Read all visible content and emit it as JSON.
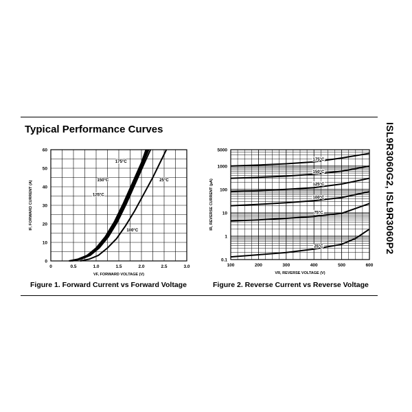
{
  "section_title": "Typical Performance Curves",
  "part_number": "ISL9R3060G2, ISL9R3060P2",
  "chart_data": [
    {
      "type": "line",
      "caption": "Figure 1.  Forward Current vs Forward Voltage",
      "xlabel": "VF, FORWARD VOLTAGE (V)",
      "ylabel": "IF, FORWARD CURRENT (A)",
      "xlim": [
        0,
        3.0
      ],
      "ylim": [
        0,
        60
      ],
      "x_ticks": [
        "0",
        "0.5",
        "1.0",
        "1.5",
        "2.0",
        "2.5",
        "3.0"
      ],
      "y_ticks": [
        "0",
        "10",
        "20",
        "30",
        "40",
        "50",
        "60"
      ],
      "grid": true,
      "series": [
        {
          "name": "175°C",
          "points": [
            [
              0.4,
              0
            ],
            [
              0.6,
              1
            ],
            [
              0.8,
              3
            ],
            [
              1.0,
              7
            ],
            [
              1.2,
              13
            ],
            [
              1.4,
              21
            ],
            [
              1.6,
              31
            ],
            [
              1.8,
              42
            ],
            [
              2.0,
              53
            ],
            [
              2.1,
              60
            ]
          ]
        },
        {
          "name": "150°C",
          "points": [
            [
              0.42,
              0
            ],
            [
              0.62,
              1
            ],
            [
              0.82,
              3
            ],
            [
              1.02,
              7
            ],
            [
              1.22,
              13
            ],
            [
              1.42,
              21
            ],
            [
              1.62,
              31
            ],
            [
              1.82,
              42
            ],
            [
              2.02,
              53
            ],
            [
              2.13,
              60
            ]
          ]
        },
        {
          "name": "125°C",
          "points": [
            [
              0.44,
              0
            ],
            [
              0.64,
              1
            ],
            [
              0.84,
              3
            ],
            [
              1.04,
              7
            ],
            [
              1.24,
              13
            ],
            [
              1.44,
              21
            ],
            [
              1.64,
              31
            ],
            [
              1.84,
              42
            ],
            [
              2.04,
              53
            ],
            [
              2.16,
              60
            ]
          ]
        },
        {
          "name": "100°C",
          "points": [
            [
              0.47,
              0
            ],
            [
              0.67,
              1
            ],
            [
              0.87,
              3
            ],
            [
              1.07,
              7
            ],
            [
              1.27,
              13
            ],
            [
              1.47,
              21
            ],
            [
              1.67,
              31
            ],
            [
              1.87,
              42
            ],
            [
              2.07,
              53
            ],
            [
              2.2,
              60
            ]
          ]
        },
        {
          "name": "25°C",
          "points": [
            [
              0.65,
              0
            ],
            [
              0.85,
              1
            ],
            [
              1.05,
              3
            ],
            [
              1.25,
              7
            ],
            [
              1.45,
              12
            ],
            [
              1.65,
              19
            ],
            [
              1.85,
              27
            ],
            [
              2.05,
              36
            ],
            [
              2.25,
              45
            ],
            [
              2.45,
              55
            ],
            [
              2.55,
              60
            ]
          ]
        }
      ],
      "annotations": [
        {
          "text": "175°C",
          "x": 1.55,
          "y": 53
        },
        {
          "text": "150°C",
          "x": 1.15,
          "y": 43
        },
        {
          "text": "125°C",
          "x": 1.05,
          "y": 35
        },
        {
          "text": "100°C",
          "x": 1.8,
          "y": 16
        },
        {
          "text": "25°C",
          "x": 2.5,
          "y": 43
        }
      ]
    },
    {
      "type": "line",
      "caption": "Figure 2.  Reverse Current vs Reverse Voltage",
      "xlabel": "VR, REVERSE VOLTAGE (V)",
      "ylabel": "IR, REVERSE CURRENT (µA)",
      "xlim": [
        100,
        600
      ],
      "ylim": [
        0.1,
        5000
      ],
      "yscale": "log",
      "x_ticks": [
        "100",
        "200",
        "300",
        "400",
        "500",
        "600"
      ],
      "y_ticks": [
        "0.1",
        "1",
        "10",
        "100",
        "1000",
        "5000"
      ],
      "grid": true,
      "series": [
        {
          "name": "175°C",
          "points": [
            [
              100,
              1000
            ],
            [
              200,
              1100
            ],
            [
              300,
              1250
            ],
            [
              400,
              1500
            ],
            [
              500,
              2200
            ],
            [
              600,
              3500
            ]
          ]
        },
        {
          "name": "150°C",
          "points": [
            [
              100,
              300
            ],
            [
              200,
              330
            ],
            [
              300,
              370
            ],
            [
              400,
              450
            ],
            [
              500,
              600
            ],
            [
              600,
              1000
            ]
          ]
        },
        {
          "name": "125°C",
          "points": [
            [
              100,
              80
            ],
            [
              200,
              88
            ],
            [
              300,
              100
            ],
            [
              400,
              120
            ],
            [
              500,
              170
            ],
            [
              600,
              300
            ]
          ]
        },
        {
          "name": "100°C",
          "points": [
            [
              100,
              20
            ],
            [
              200,
              23
            ],
            [
              300,
              27
            ],
            [
              400,
              33
            ],
            [
              500,
              45
            ],
            [
              600,
              80
            ]
          ]
        },
        {
          "name": "75°C",
          "points": [
            [
              100,
              4.5
            ],
            [
              200,
              5
            ],
            [
              300,
              5.8
            ],
            [
              400,
              7
            ],
            [
              500,
              9.5
            ],
            [
              600,
              25
            ]
          ]
        },
        {
          "name": "25°C",
          "points": [
            [
              100,
              0.13
            ],
            [
              200,
              0.16
            ],
            [
              300,
              0.2
            ],
            [
              400,
              0.28
            ],
            [
              500,
              0.45
            ],
            [
              550,
              0.8
            ],
            [
              600,
              2
            ]
          ]
        }
      ],
      "annotations": [
        {
          "text": "175°C",
          "x": 330,
          "y": 1700
        },
        {
          "text": "150°C",
          "x": 330,
          "y": 500
        },
        {
          "text": "125°C",
          "x": 330,
          "y": 150
        },
        {
          "text": "100°C",
          "x": 330,
          "y": 40
        },
        {
          "text": "75°C",
          "x": 330,
          "y": 9
        },
        {
          "text": "25°C",
          "x": 330,
          "y": 0.33
        }
      ]
    }
  ]
}
